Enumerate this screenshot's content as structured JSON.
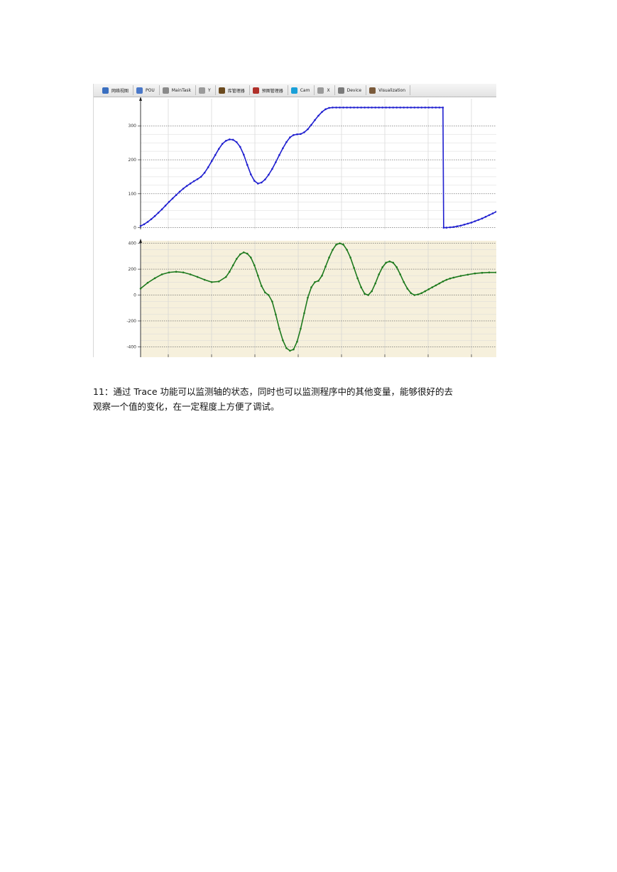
{
  "tabs": [
    {
      "label": "网络视图",
      "icon": "network-view-icon",
      "color": "#3a6fc0"
    },
    {
      "label": "POU",
      "icon": "pou-icon",
      "color": "#4a78c8"
    },
    {
      "label": "MainTask",
      "icon": "task-gear-icon",
      "color": "#8a8a8a"
    },
    {
      "label": "Y",
      "icon": "axis-link-icon",
      "color": "#9a9a9a"
    },
    {
      "label": "库管理器",
      "icon": "library-manager-icon",
      "color": "#6b4a1e"
    },
    {
      "label": "预图管理器",
      "icon": "image-manager-icon",
      "color": "#b0302a"
    },
    {
      "label": "Cam",
      "icon": "cam-icon",
      "color": "#1aa0d8"
    },
    {
      "label": "X",
      "icon": "axis-link-icon",
      "color": "#9a9a9a"
    },
    {
      "label": "Device",
      "icon": "device-icon",
      "color": "#7a7a7a"
    },
    {
      "label": "Visualization",
      "icon": "visualization-icon",
      "color": "#7a5a3a"
    }
  ],
  "paragraph": {
    "line1": "11：通过 Trace 功能可以监测轴的状态，同时也可以监测程序中的其他变量，能够很好的去",
    "line2": "观察一个值的变化，在一定程度上方便了调试。"
  },
  "chart_data": [
    {
      "type": "line",
      "title": "",
      "xlabel": "",
      "ylabel": "",
      "ylim": [
        -5,
        380
      ],
      "yticks": [
        0,
        100,
        200,
        300
      ],
      "background": "#ffffff",
      "grid": true,
      "series": [
        {
          "color": "#2020d0",
          "x": [
            0,
            5,
            10,
            15,
            20,
            25,
            30,
            35,
            40,
            45,
            50,
            55,
            60,
            65,
            70,
            75,
            80,
            85,
            90,
            95,
            100,
            105,
            110,
            115,
            120,
            125,
            130,
            135,
            140,
            145,
            150,
            155,
            160,
            165,
            170,
            175,
            180,
            185,
            190,
            195,
            200,
            205,
            210,
            215,
            220,
            225,
            230,
            235,
            240,
            245,
            250,
            255,
            260,
            265,
            270,
            275,
            280,
            285,
            290,
            295,
            300,
            305,
            310,
            315,
            320,
            325,
            330,
            335,
            340,
            345,
            350,
            355,
            360,
            365,
            370,
            375,
            380,
            385,
            390,
            395,
            400,
            405,
            410,
            415,
            420,
            425,
            426,
            430,
            435,
            440,
            445,
            450,
            455,
            460,
            465,
            470,
            475,
            480,
            485,
            490,
            495,
            500
          ],
          "y": [
            5,
            10,
            17,
            25,
            34,
            44,
            54,
            65,
            76,
            86,
            96,
            106,
            115,
            123,
            130,
            137,
            143,
            150,
            162,
            178,
            196,
            214,
            232,
            247,
            256,
            260,
            259,
            252,
            238,
            215,
            185,
            157,
            138,
            130,
            133,
            142,
            156,
            173,
            193,
            214,
            234,
            252,
            266,
            273,
            275,
            276,
            281,
            290,
            303,
            317,
            330,
            341,
            349,
            353,
            354,
            354,
            354,
            354,
            354,
            354,
            354,
            354,
            354,
            354,
            354,
            354,
            354,
            354,
            354,
            354,
            354,
            354,
            354,
            354,
            354,
            354,
            354,
            354,
            354,
            354,
            354,
            354,
            354,
            354,
            354,
            354,
            0,
            0,
            1,
            2,
            4,
            6,
            9,
            12,
            15,
            19,
            23,
            27,
            32,
            37,
            42,
            47
          ]
        }
      ]
    },
    {
      "type": "line",
      "title": "",
      "xlabel": "",
      "ylabel": "",
      "ylim": [
        -480,
        420
      ],
      "yticks": [
        400,
        200,
        0,
        -200,
        -400
      ],
      "background": "#f6f0dc",
      "grid": true,
      "series": [
        {
          "color": "#1e7a1e",
          "x": [
            0,
            10,
            20,
            30,
            40,
            50,
            60,
            70,
            80,
            90,
            100,
            110,
            120,
            125,
            130,
            135,
            140,
            145,
            150,
            155,
            160,
            165,
            170,
            175,
            180,
            185,
            190,
            195,
            200,
            205,
            210,
            215,
            220,
            225,
            230,
            235,
            240,
            245,
            250,
            255,
            260,
            265,
            270,
            275,
            280,
            285,
            290,
            295,
            300,
            305,
            310,
            315,
            320,
            325,
            330,
            335,
            340,
            345,
            350,
            355,
            360,
            365,
            370,
            375,
            380,
            385,
            390,
            395,
            400,
            405,
            410,
            415,
            420,
            425,
            430,
            435,
            440,
            450,
            460,
            470,
            480,
            490,
            500
          ],
          "y": [
            50,
            95,
            130,
            160,
            175,
            180,
            175,
            160,
            140,
            118,
            100,
            105,
            140,
            180,
            230,
            280,
            315,
            330,
            320,
            290,
            230,
            150,
            70,
            20,
            0,
            -50,
            -150,
            -260,
            -350,
            -410,
            -430,
            -420,
            -360,
            -260,
            -140,
            -20,
            60,
            100,
            110,
            150,
            220,
            290,
            350,
            390,
            400,
            390,
            350,
            290,
            210,
            130,
            60,
            10,
            0,
            30,
            90,
            160,
            215,
            250,
            260,
            250,
            215,
            160,
            100,
            50,
            15,
            0,
            5,
            15,
            30,
            45,
            60,
            75,
            90,
            105,
            118,
            128,
            135,
            148,
            158,
            167,
            172,
            175,
            175
          ]
        }
      ]
    }
  ]
}
